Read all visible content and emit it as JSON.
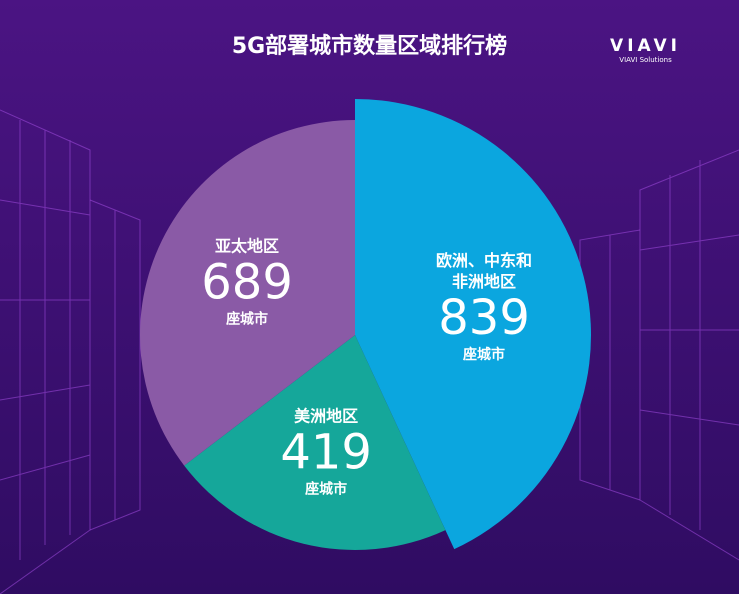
{
  "chart_data": {
    "type": "pie",
    "title": "5G部署城市数量区域排行榜",
    "categories": [
      "欧洲、中东和非洲地区",
      "美洲地区",
      "亚太地区"
    ],
    "values": [
      839,
      419,
      689
    ],
    "colors": [
      "#0ba6df",
      "#15a79a",
      "#8a5aa6"
    ],
    "unit": "座城市"
  },
  "logo": {
    "name": "VIAVI",
    "tagline": "VIAVI Solutions"
  }
}
